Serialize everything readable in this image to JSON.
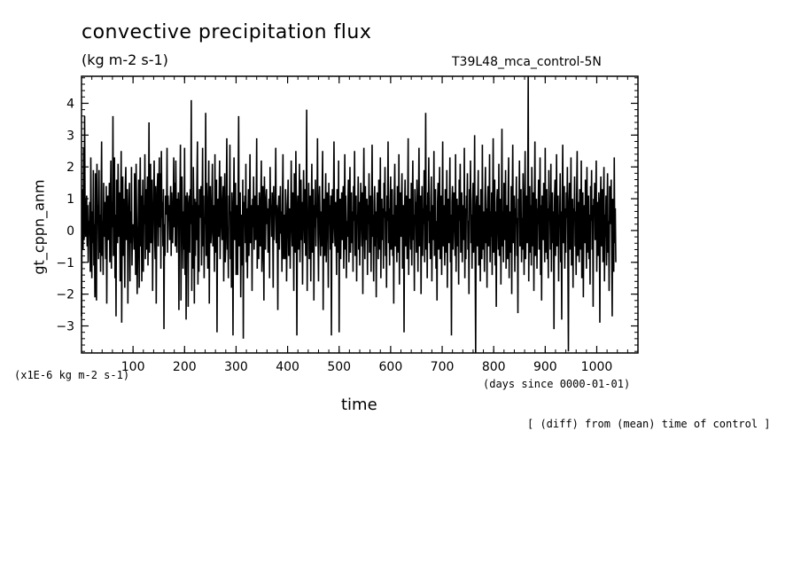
{
  "chart_data": {
    "type": "line",
    "title": "convective precipitation flux",
    "subtitle": "(kg m-2 s-1)",
    "run_label": "T39L48_mca_control-5N",
    "ylabel": "gt_cppn_anm",
    "xlabel": "time",
    "y_units": "(x1E-6 kg m-2 s-1)",
    "x_units": "(days since 0000-01-01)",
    "note": "[ (diff) from (mean) time of control ]",
    "xlim": [
      0,
      1080
    ],
    "ylim": [
      -3.85,
      4.85
    ],
    "x_ticks": [
      100,
      200,
      300,
      400,
      500,
      600,
      700,
      800,
      900,
      1000
    ],
    "y_ticks": [
      -3,
      -2,
      -1,
      0,
      1,
      2,
      3,
      4
    ],
    "grid": false,
    "x_step": 1,
    "y_decimals": 2,
    "series": [
      {
        "values": [
          -2.7,
          0.1,
          1.3,
          -0.6,
          2.6,
          -0.3,
          3.6,
          0.4,
          -0.2,
          0.7,
          1.1,
          -0.5,
          0.8,
          -1.0,
          0.3,
          0.0,
          0.9,
          -1.3,
          2.3,
          0.4,
          -1.5,
          0.6,
          -0.4,
          1.9,
          -1.1,
          0.2,
          -2.1,
          1.8,
          -0.6,
          -2.2,
          2.1,
          0.3,
          0.8,
          -0.9,
          1.9,
          -0.7,
          0.5,
          -1.3,
          1.0,
          2.8,
          -0.8,
          0.3,
          -1.4,
          1.5,
          -0.2,
          0.9,
          0.4,
          -0.9,
          1.4,
          -2.3,
          0.6,
          1.1,
          -0.3,
          0.3,
          1.5,
          -1.0,
          0.7,
          2.2,
          -1.2,
          0.9,
          0.1,
          3.6,
          -0.8,
          1.0,
          2.3,
          -1.5,
          0.5,
          -2.7,
          1.6,
          0.4,
          -0.4,
          2.1,
          -0.2,
          0.8,
          1.2,
          -1.6,
          0.6,
          2.5,
          -2.9,
          0.3,
          1.7,
          -0.8,
          1.0,
          0.2,
          -1.8,
          1.4,
          2.0,
          -0.3,
          0.5,
          1.3,
          -2.3,
          0.1,
          0.8,
          1.5,
          -1.6,
          0.6,
          -0.4,
          2.0,
          -1.1,
          0.2,
          -0.1,
          0.2,
          -0.6,
          1.8,
          0.6,
          -1.4,
          2.1,
          0.3,
          -2.0,
          -0.8,
          0.2,
          1.6,
          -1.8,
          0.9,
          2.3,
          -0.5,
          1.1,
          -1.6,
          0.4,
          1.6,
          -1.3,
          0.8,
          0.2,
          2.4,
          -0.9,
          1.3,
          -0.6,
          0.5,
          1.7,
          -1.1,
          0.4,
          3.4,
          -0.7,
          1.1,
          2.1,
          -0.4,
          0.6,
          1.6,
          -1.9,
          0.3,
          0.9,
          2.2,
          -0.2,
          -0.9,
          1.4,
          -2.3,
          0.4,
          1.3,
          1.8,
          -0.5,
          0.7,
          2.3,
          0.1,
          1.8,
          -1.2,
          2.5,
          0.4,
          0.9,
          -0.5,
          1.3,
          -3.1,
          0.2,
          -0.8,
          1.1,
          0.7,
          0.5,
          2.6,
          -0.7,
          1.1,
          0.3,
          0.8,
          -0.3,
          0.6,
          1.4,
          -0.8,
          1.2,
          0.4,
          -0.4,
          0.7,
          2.3,
          0.1,
          1.5,
          -0.5,
          2.2,
          0.6,
          -0.7,
          1.0,
          0.3,
          1.2,
          -2.5,
          0.8,
          1.0,
          2.7,
          -2.2,
          0.4,
          1.7,
          0.3,
          -1.2,
          0.6,
          -0.6,
          2.6,
          -1.4,
          1.1,
          -2.8,
          0.3,
          1.2,
          0.8,
          -2.4,
          0.5,
          1.1,
          -0.7,
          1.3,
          0.2,
          4.1,
          -1.9,
          0.8,
          -1.2,
          2.0,
          0.6,
          -2.3,
          1.0,
          -0.8,
          0.9,
          -0.3,
          1.5,
          2.8,
          -1.7,
          0.8,
          -1.3,
          1.3,
          1.2,
          0.4,
          1.4,
          -1.1,
          0.6,
          2.6,
          -0.5,
          1.1,
          -1.5,
          0.4,
          0.2,
          3.7,
          -0.8,
          1.5,
          0.7,
          -1.2,
          0.4,
          2.2,
          -2.3,
          0.6,
          1.4,
          -0.4,
          -0.1,
          0.9,
          2.1,
          -0.5,
          0.3,
          0.8,
          -1.3,
          2.4,
          -0.7,
          0.6,
          1.6,
          -3.2,
          0.3,
          1.0,
          -0.2,
          0.9,
          2.2,
          -0.9,
          0.6,
          1.7,
          0.4,
          -0.3,
          0.8,
          1.4,
          -1.6,
          0.5,
          1.8,
          -1.0,
          -0.4,
          0.9,
          2.9,
          -0.6,
          0.1,
          -1.5,
          1.1,
          0.5,
          2.7,
          -0.9,
          0.6,
          -1.8,
          1.2,
          0.3,
          -3.3,
          0.7,
          2.3,
          -0.3,
          0.9,
          1.5,
          -1.4,
          0.4,
          0.8,
          -1.4,
          1.4,
          3.6,
          -0.5,
          0.6,
          1.2,
          -2.1,
          0.2,
          0.5,
          -1.1,
          1.6,
          -3.4,
          0.9,
          0.2,
          1.1,
          -0.4,
          2.1,
          -1.0,
          0.7,
          -1.5,
          0.3,
          1.3,
          -0.8,
          0.6,
          2.4,
          -0.4,
          0.6,
          0.8,
          -1.9,
          1.0,
          0.1,
          1.7,
          -0.6,
          0.4,
          1.1,
          -0.3,
          0.7,
          2.9,
          -1.2,
          0.8,
          0.3,
          -0.9,
          1.2,
          0.5,
          -0.5,
          0.9,
          2.2,
          -1.3,
          -0.7,
          1.4,
          0.4,
          -2.2,
          1.7,
          0.6,
          -0.6,
          0.9,
          1.3,
          0.2,
          0.7,
          -0.7,
          0.3,
          1.0,
          -1.5,
          2.0,
          0.5,
          0.8,
          -0.2,
          1.2,
          0.4,
          -1.8,
          1.4,
          -0.3,
          0.6,
          0.9,
          2.6,
          -0.4,
          0.8,
          0.2,
          -2.5,
          0.7,
          1.1,
          -0.6,
          0.4,
          1.4,
          -0.1,
          0.6,
          -1.3,
          1.0,
          2.4,
          -0.9,
          0.5,
          0.2,
          -0.9,
          1.3,
          0.8,
          -1.6,
          -0.2,
          0.7,
          1.6,
          -0.8,
          0.4,
          0.7,
          -1.2,
          0.3,
          2.2,
          0.5,
          -0.5,
          1.2,
          0.2,
          -1.9,
          1.8,
          0.4,
          -0.7,
          2.5,
          0.8,
          -3.3,
          0.3,
          1.1,
          -0.6,
          0.6,
          2.1,
          -1.0,
          0.5,
          1.6,
          -0.3,
          0.9,
          -1.7,
          0.4,
          1.9,
          0.6,
          -0.4,
          1.3,
          -0.8,
          0.7,
          3.8,
          -1.9,
          0.6,
          0.2,
          1.5,
          -0.9,
          0.4,
          1.1,
          -1.6,
          0.6,
          2.1,
          -0.7,
          0.3,
          1.3,
          -2.2,
          0.8,
          0.1,
          1.6,
          -0.5,
          0.8,
          0.4,
          2.9,
          -0.2,
          -1.6,
          0.9,
          1.4,
          0.3,
          -0.8,
          0.6,
          -0.5,
          1.2,
          2.5,
          -2.5,
          0.4,
          1.0,
          -0.8,
          0.7,
          1.8,
          -1.0,
          0.3,
          1.2,
          0.5,
          -1.8,
          1.5,
          0.2,
          0.8,
          -0.6,
          1.1,
          -3.3,
          0.5,
          1.3,
          -0.4,
          0.7,
          2.8,
          0.2,
          -0.5,
          0.9,
          0.4,
          -1.4,
          1.3,
          0.6,
          -0.7,
          2.2,
          -3.2,
          0.6,
          1.0,
          -0.9,
          0.4,
          1.2,
          -0.3,
          0.8,
          1.4,
          -1.2,
          0.5,
          2.4,
          -0.6,
          1.1,
          -1.5,
          0.3,
          -0.2,
          0.8,
          1.6,
          -1.0,
          0.5,
          2.0,
          -0.7,
          0.4,
          1.2,
          -0.4,
          0.6,
          -1.3,
          1.4,
          0.3,
          2.5,
          -0.8,
          0.7,
          1.1,
          -1.6,
          0.5,
          0.2,
          1.7,
          -0.6,
          0.9,
          -1.1,
          0.4,
          1.5,
          0.6,
          -0.5,
          1.2,
          -2.0,
          0.7,
          2.6,
          0.3,
          -0.9,
          1.4,
          -0.3,
          0.6,
          1.0,
          -1.4,
          0.8,
          0.2,
          1.8,
          -0.7,
          0.4,
          1.1,
          -1.3,
          0.7,
          2.7,
          -0.2,
          0.5,
          -1.6,
          0.9,
          1.4,
          -0.5,
          0.6,
          -2.1,
          0.3,
          1.2,
          0.8,
          -0.9,
          1.6,
          0.2,
          -0.6,
          2.3,
          -1.5,
          0.5,
          1.0,
          -0.3,
          0.7,
          -1.2,
          1.5,
          0.4,
          2.0,
          -0.8,
          0.6,
          -1.8,
          1.1,
          0.3,
          2.8,
          -0.4,
          0.7,
          -1.1,
          0.9,
          1.7,
          -0.6,
          0.2,
          1.3,
          -0.8,
          0.5,
          -2.3,
          1.0,
          2.1,
          -0.5,
          0.8,
          0.3,
          -1.0,
          1.4,
          0.6,
          -0.7,
          2.4,
          -1.7,
          0.5,
          1.2,
          -0.2,
          0.9,
          1.8,
          -1.2,
          0.4,
          0.8,
          -3.2,
          0.6,
          1.6,
          -0.5,
          0.3,
          1.1,
          -0.9,
          0.7,
          2.9,
          -1.4,
          0.4,
          1.0,
          0.2,
          -0.6,
          1.5,
          -1.1,
          0.7,
          2.2,
          -0.3,
          0.5,
          -1.9,
          1.3,
          0.4,
          0.9,
          -0.7,
          1.6,
          0.3,
          -1.3,
          0.8,
          2.6,
          -0.5,
          0.6,
          1.1,
          -2.0,
          0.4,
          1.4,
          -0.8,
          0.7,
          0.2,
          1.9,
          -1.0,
          0.5,
          3.7,
          -0.6,
          0.8,
          -1.5,
          1.2,
          0.3,
          2.3,
          -0.4,
          0.6,
          -0.9,
          1.0,
          1.7,
          -1.6,
          0.4,
          0.8,
          -0.3,
          2.5,
          -0.8,
          0.6,
          1.3,
          -1.2,
          0.3,
          -2.2,
          0.9,
          1.5,
          -0.6,
          0.4,
          2.0,
          -0.9,
          0.7,
          1.1,
          -1.4,
          0.5,
          2.8,
          -0.5,
          0.8,
          0.2,
          -1.1,
          1.3,
          0.6,
          -0.7,
          1.9,
          -1.8,
          0.4,
          1.0,
          -0.4,
          0.7,
          2.3,
          -1.0,
          0.5,
          -3.3,
          0.9,
          1.4,
          -0.6,
          0.3,
          1.2,
          0.5,
          -0.8,
          2.4,
          -1.3,
          0.6,
          1.0,
          -0.5,
          0.8,
          -1.7,
          1.6,
          0.3,
          2.1,
          -0.7,
          0.5,
          1.2,
          -1.0,
          0.4,
          0.8,
          -0.3,
          2.6,
          -1.5,
          0.7,
          -0.9,
          1.1,
          0.6,
          1.8,
          -0.6,
          0.3,
          -2.0,
          1.3,
          0.7,
          2.2,
          -0.4,
          0.5,
          -1.2,
          0.9,
          1.5,
          -0.7,
          0.4,
          3.0,
          -0.8,
          -3.9,
          0.6,
          1.1,
          -0.5,
          0.7,
          1.9,
          -1.1,
          0.4,
          0.8,
          -1.6,
          1.3,
          0.5,
          -0.9,
          2.7,
          -0.6,
          0.6,
          0.2,
          -1.3,
          1.0,
          2.0,
          -0.4,
          0.7,
          -1.8,
          0.8,
          1.4,
          -0.5,
          0.5,
          2.4,
          -1.0,
          0.6,
          -0.2,
          1.2,
          -1.4,
          0.8,
          2.9,
          -0.7,
          0.4,
          1.6,
          -1.1,
          0.6,
          -2.4,
          0.9,
          1.3,
          0.3,
          -0.6,
          2.1,
          -0.8,
          0.5,
          1.0,
          -1.7,
          0.7,
          3.2,
          -0.5,
          0.6,
          -1.0,
          1.5,
          0.4,
          -0.3,
          1.9,
          -1.2,
          0.8,
          0.5,
          -0.9,
          1.2,
          2.3,
          -1.5,
          0.6,
          0.3,
          -0.7,
          1.4,
          -2.0,
          0.9,
          2.7,
          -0.4,
          0.5,
          1.1,
          -1.3,
          0.7,
          0.2,
          1.7,
          -0.8,
          0.4,
          -2.6,
          1.0,
          0.6,
          2.2,
          -0.5,
          0.8,
          1.3,
          -1.0,
          0.4,
          -0.6,
          1.8,
          0.5,
          -1.4,
          0.7,
          2.5,
          -0.9,
          0.3,
          1.1,
          -0.4,
          0.9,
          4.9,
          -1.6,
          0.5,
          1.4,
          -0.7,
          0.8,
          -1.1,
          2.0,
          0.3,
          -0.5,
          1.2,
          -1.9,
          0.6,
          2.8,
          -0.8,
          0.4,
          1.0,
          -1.2,
          0.7,
          0.2,
          1.6,
          -0.6,
          0.5,
          2.3,
          -1.4,
          0.8,
          -2.2,
          1.1,
          0.4,
          -0.3,
          1.5,
          0.6,
          -1.0,
          2.6,
          -0.7,
          0.5,
          1.3,
          -0.9,
          0.7,
          -1.5,
          1.9,
          0.3,
          0.8,
          -0.6,
          2.1,
          -1.3,
          0.5,
          1.2,
          -0.4,
          0.6,
          -3.1,
          1.0,
          1.6,
          -0.8,
          0.4,
          2.4,
          -0.5,
          0.7,
          1.1,
          -1.6,
          0.5,
          0.3,
          1.8,
          -1.0,
          0.6,
          -2.8,
          0.9,
          2.7,
          -0.4,
          0.5,
          1.4,
          -1.2,
          0.7,
          -0.7,
          1.2,
          0.4,
          2.0,
          -0.9,
          -3.8,
          0.8,
          1.5,
          -0.6,
          0.5,
          2.3,
          -1.1,
          0.4,
          1.0,
          -1.8,
          0.7,
          0.3,
          1.7,
          -0.5,
          0.6,
          -1.4,
          1.1,
          2.5,
          -0.8,
          0.4,
          0.9,
          -1.0,
          1.3,
          0.5,
          -0.6,
          2.2,
          -1.5,
          0.7,
          1.2,
          -2.1,
          0.4,
          0.8,
          -0.4,
          1.6,
          0.3,
          -1.2,
          2.0,
          -0.7,
          0.6,
          1.1,
          -0.9,
          0.5,
          -1.7,
          1.4,
          0.3,
          1.9,
          -0.6,
          0.8,
          -2.4,
          1.0,
          0.5,
          1.5,
          -0.3,
          0.7,
          2.2,
          -1.3,
          0.4,
          0.9,
          -0.8,
          1.2,
          0.6,
          -2.9,
          0.8,
          1.7,
          -0.5,
          0.4,
          1.3,
          -1.0,
          0.7,
          2.0,
          -1.6,
          0.5,
          -0.2,
          1.1,
          -1.1,
          0.6,
          1.8,
          -0.7,
          0.3,
          -1.9,
          1.4,
          0.8,
          0.2,
          1.6,
          -0.6,
          -2.7,
          1.0,
          0.5,
          -1.3,
          2.3,
          -0.4,
          0.7,
          -1.0
        ]
      }
    ]
  }
}
